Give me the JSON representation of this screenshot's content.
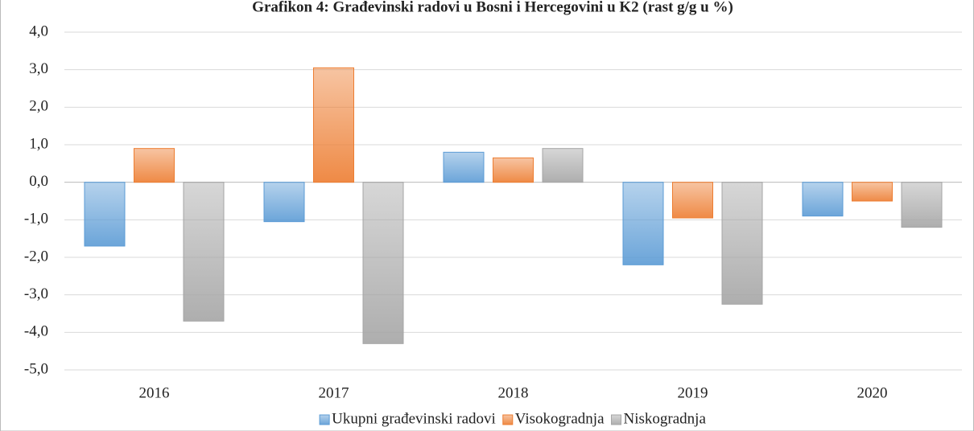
{
  "chart_data": {
    "type": "bar",
    "title": "Grafikon 4: Građevinski radovi u Bosni i Hercegovini u K2 (rast g/g u %)",
    "categories": [
      "2016",
      "2017",
      "2018",
      "2019",
      "2020"
    ],
    "series": [
      {
        "name": "Ukupni građevinski radovi",
        "color": "#5b9bd5",
        "values": [
          -1.7,
          -1.05,
          0.8,
          -2.2,
          -0.9
        ]
      },
      {
        "name": "Visokogradnja",
        "color": "#ed7d31",
        "values": [
          0.9,
          3.05,
          0.65,
          -0.95,
          -0.5
        ]
      },
      {
        "name": "Niskogradnja",
        "color": "#a5a5a5",
        "values": [
          -3.7,
          -4.3,
          0.9,
          -3.25,
          -1.2
        ]
      }
    ],
    "ylim": [
      -5,
      4
    ],
    "yticks": [
      {
        "value": -5,
        "label": "-5,0"
      },
      {
        "value": -4,
        "label": "-4,0"
      },
      {
        "value": -3,
        "label": "-3,0"
      },
      {
        "value": -2,
        "label": "-2,0"
      },
      {
        "value": -1,
        "label": "-1,0"
      },
      {
        "value": 0,
        "label": "0,0"
      },
      {
        "value": 1,
        "label": "1,0"
      },
      {
        "value": 2,
        "label": "2,0"
      },
      {
        "value": 3,
        "label": "3,0"
      },
      {
        "value": 4,
        "label": "4,0"
      }
    ],
    "grid": true,
    "legend": "bottom"
  }
}
